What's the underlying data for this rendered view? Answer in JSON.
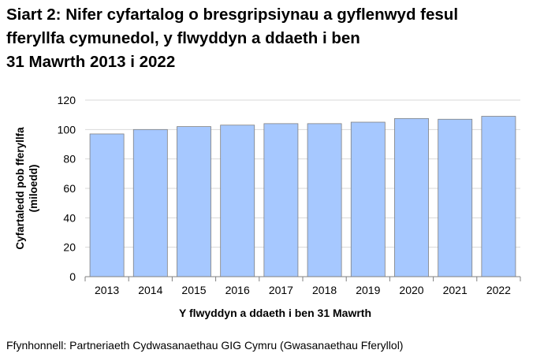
{
  "title_lines": [
    "Siart 2: Nifer cyfartalog o bresgripsiynau a gyflenwyd fesul",
    "fferyllfa cymunedol, y flwyddyn a ddaeth i ben",
    "31 Mawrth 2013 i 2022"
  ],
  "source": "Ffynhonnell: Partneriaeth Cydwasanaethau GIG Cymru (Gwasanaethau Fferyllol)",
  "chart_data": {
    "type": "bar",
    "title": "Siart 2: Nifer cyfartalog o bresgripsiynau a gyflenwyd fesul fferyllfa cymunedol, y flwyddyn a ddaeth i ben 31 Mawrth 2013 i 2022",
    "categories": [
      "2013",
      "2014",
      "2015",
      "2016",
      "2017",
      "2018",
      "2019",
      "2020",
      "2021",
      "2022"
    ],
    "values": [
      97,
      100,
      102,
      103,
      104,
      104,
      105,
      107.5,
      107,
      109
    ],
    "xlabel": "Y flwyddyn a ddaeth i ben 31 Mawrth",
    "ylabel_lines": [
      "Cyfartaledd pob fferyllfa",
      "(miloedd)"
    ],
    "ylim": [
      0,
      120
    ],
    "yticks": [
      0,
      20,
      40,
      60,
      80,
      100,
      120
    ],
    "grid": true,
    "legend": "none",
    "bar_color": "#a6c8ff",
    "bar_stroke": "#808080",
    "grid_color": "#d9d9d9"
  }
}
